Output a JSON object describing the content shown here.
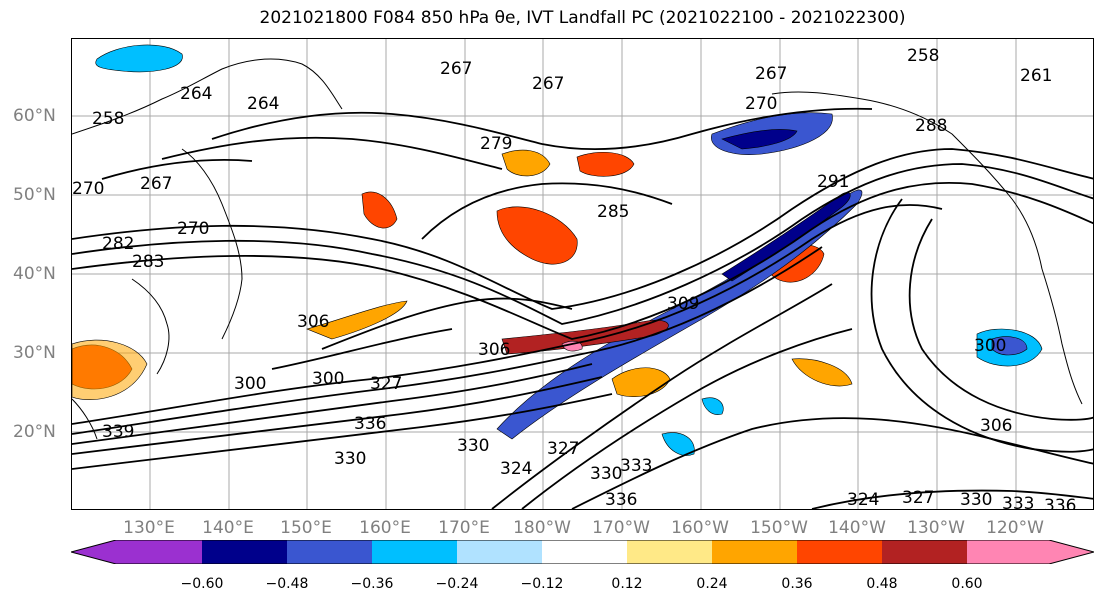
{
  "title": "2021021800 F084 850 hPa θe, IVT Landfall PC (2021022100 - 2021022300)",
  "latitude_labels": [
    "60°N",
    "50°N",
    "40°N",
    "30°N",
    "20°N"
  ],
  "longitude_labels": [
    "130°E",
    "140°E",
    "150°E",
    "160°E",
    "170°E",
    "180°W",
    "170°W",
    "160°W",
    "150°W",
    "140°W",
    "130°W",
    "120°W"
  ],
  "colorbar": {
    "colors": [
      "#9b30d0",
      "#00008b",
      "#3a56d0",
      "#00bfff",
      "#b0e2ff",
      "#ffffff",
      "#ffe987",
      "#ffa500",
      "#ff4500",
      "#b22222",
      "#ff85b3"
    ],
    "tick_labels": [
      "−0.60",
      "−0.48",
      "−0.36",
      "−0.24",
      "−0.12",
      "0.12",
      "0.24",
      "0.36",
      "0.48",
      "0.60"
    ]
  },
  "contour_labels": [
    "258",
    "267",
    "264",
    "261",
    "270",
    "279",
    "288",
    "291",
    "282",
    "285",
    "283",
    "306",
    "300",
    "309",
    "327",
    "336",
    "339",
    "330",
    "333",
    "324"
  ],
  "colors": {
    "contour": "#000000",
    "axis_label": "#808080",
    "grid": "#a9a9a9"
  }
}
